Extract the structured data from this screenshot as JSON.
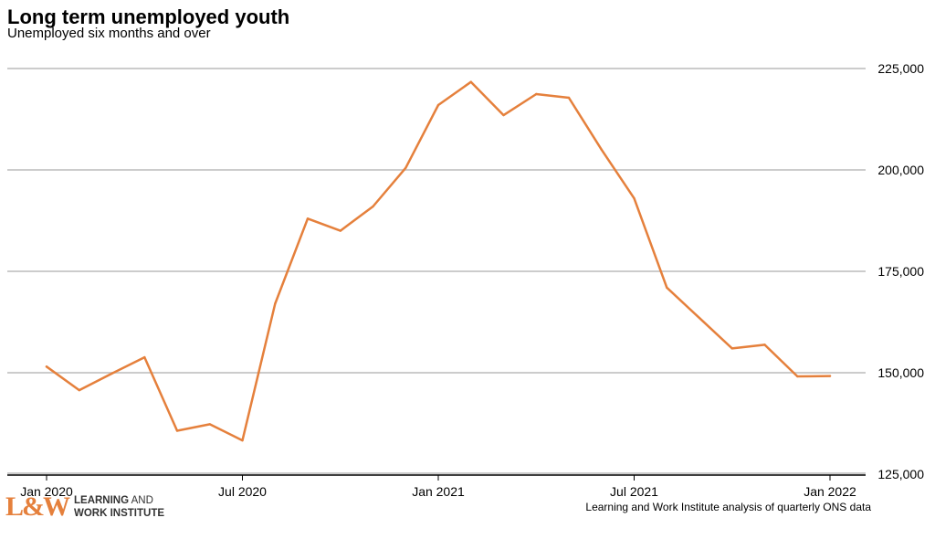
{
  "chart_data": {
    "type": "line",
    "title": "Long term unemployed youth",
    "subtitle": "Unemployed six months and over",
    "x_tick_labels": [
      "Jan 2020",
      "Jul 2020",
      "Jan 2021",
      "Jul 2021",
      "Jan 2022"
    ],
    "y_tick_labels": [
      "125,000",
      "150,000",
      "175,000",
      "200,000",
      "225,000"
    ],
    "y_ticks": [
      125000,
      150000,
      175000,
      200000,
      225000
    ],
    "ylim": [
      125000,
      225000
    ],
    "xlim": [
      "2020-01",
      "2022-01"
    ],
    "grid": true,
    "series": [
      {
        "color": "#e5803c",
        "x": [
          "2020-01",
          "2020-02",
          "2020-03",
          "2020-04",
          "2020-05",
          "2020-06",
          "2020-07",
          "2020-08",
          "2020-09",
          "2020-10",
          "2020-11",
          "2020-12",
          "2021-01",
          "2021-02",
          "2021-03",
          "2021-04",
          "2021-05",
          "2021-06",
          "2021-07",
          "2021-08",
          "2021-09",
          "2021-10",
          "2021-11",
          "2021-12",
          "2022-01"
        ],
        "values": [
          151500,
          145700,
          149800,
          153800,
          135700,
          137300,
          133300,
          167000,
          188000,
          185000,
          191000,
          200500,
          216000,
          221700,
          213500,
          218700,
          217800,
          205000,
          193000,
          171000,
          163500,
          156000,
          156900,
          149100,
          149200
        ]
      }
    ]
  },
  "colors": {
    "line": "#e5803c",
    "grid": "#cccccc",
    "axis": "#000000"
  },
  "logo": {
    "mark": "L&W",
    "line1": "LEARNING",
    "line1_rest": " AND",
    "line2": "WORK INSTITUTE"
  },
  "source": "Learning and Work Institute analysis of quarterly ONS data"
}
